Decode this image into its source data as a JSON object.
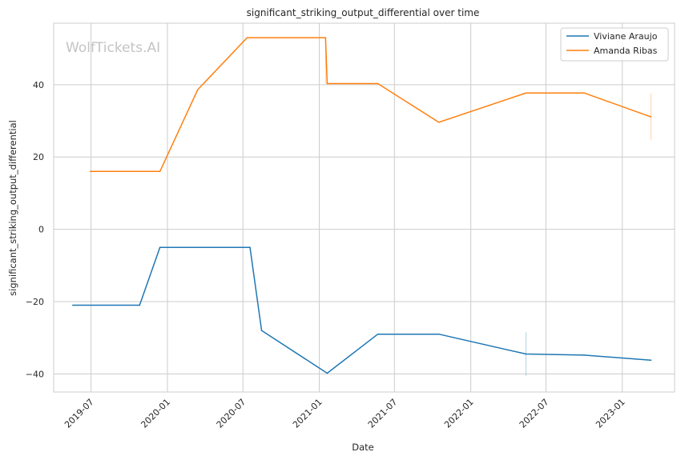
{
  "watermark": "WolfTickets.AI",
  "chart_data": {
    "type": "line",
    "title": "significant_striking_output_differential over time",
    "xlabel": "Date",
    "ylabel": "significant_striking_output_differential",
    "xlim": [
      "2019-04-02",
      "2023-05-07"
    ],
    "ylim": [
      -45,
      57
    ],
    "xticks": [
      "2019-07-01",
      "2020-01-01",
      "2020-07-01",
      "2021-01-01",
      "2021-07-01",
      "2022-01-01",
      "2022-07-01",
      "2023-01-01"
    ],
    "xtick_labels": [
      "2019-07",
      "2020-01",
      "2020-07",
      "2021-01",
      "2021-07",
      "2022-01",
      "2022-07",
      "2023-01"
    ],
    "yticks": [
      -40,
      -20,
      0,
      20,
      40
    ],
    "yticklabels": [
      "−40",
      "−20",
      "0",
      "20",
      "40"
    ],
    "grid": true,
    "legend_position": "top-right",
    "series": [
      {
        "name": "Viviane Araujo",
        "color": "#1f77b4",
        "points": [
          {
            "x": "2019-05-18",
            "y": -21
          },
          {
            "x": "2019-10-26",
            "y": -21
          },
          {
            "x": "2019-12-14",
            "y": -5
          },
          {
            "x": "2020-07-18",
            "y": -5
          },
          {
            "x": "2020-08-15",
            "y": -28
          },
          {
            "x": "2021-01-20",
            "y": -39.8
          },
          {
            "x": "2021-05-22",
            "y": -29
          },
          {
            "x": "2021-10-16",
            "y": -29
          },
          {
            "x": "2022-05-14",
            "y": -34.5
          },
          {
            "x": "2022-10-01",
            "y": -34.8
          },
          {
            "x": "2023-03-11",
            "y": -36.2
          }
        ],
        "error_bars": [
          {
            "x": "2022-05-14",
            "y_low": -40.5,
            "y_high": -28.5
          }
        ]
      },
      {
        "name": "Amanda Ribas",
        "color": "#ff7f0e",
        "points": [
          {
            "x": "2019-06-29",
            "y": 16
          },
          {
            "x": "2019-12-14",
            "y": 16
          },
          {
            "x": "2020-03-14",
            "y": 38.6
          },
          {
            "x": "2020-07-11",
            "y": 53
          },
          {
            "x": "2021-01-16",
            "y": 53
          },
          {
            "x": "2021-01-20",
            "y": 40.3
          },
          {
            "x": "2021-05-22",
            "y": 40.3
          },
          {
            "x": "2021-10-16",
            "y": 29.6
          },
          {
            "x": "2022-05-14",
            "y": 37.7
          },
          {
            "x": "2022-10-01",
            "y": 37.7
          },
          {
            "x": "2023-03-11",
            "y": 31.1
          }
        ],
        "error_bars": [
          {
            "x": "2023-03-11",
            "y_low": 24.8,
            "y_high": 37.6
          },
          {
            "x": "2021-01-16",
            "y_low": 40.3,
            "y_high": 53
          }
        ]
      }
    ]
  }
}
